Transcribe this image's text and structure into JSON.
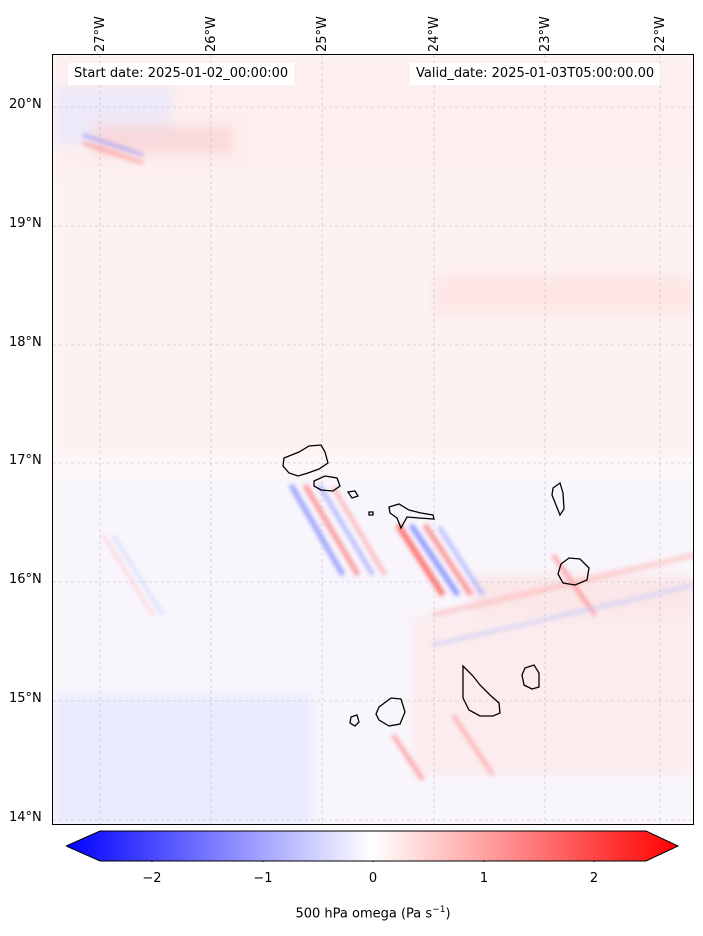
{
  "map": {
    "start_annotation": "Start date: 2025-01-02_00:00:00",
    "valid_annotation": "Valid_date: 2025-01-03T05:00:00.00",
    "lon_labels": [
      "27°W",
      "26°W",
      "25°W",
      "24°W",
      "23°W",
      "22°W"
    ],
    "lat_labels": [
      "20°N",
      "19°N",
      "18°N",
      "17°N",
      "16°N",
      "15°N",
      "14°N"
    ],
    "lon_range": [
      -27.4,
      -21.7
    ],
    "lat_range": [
      13.95,
      20.4
    ],
    "gridlines": true,
    "field": "500 hPa omega",
    "land_outline_color": "#000000"
  },
  "colorbar": {
    "label": "500 hPa omega (Pa s",
    "label_sup": "−1",
    "label_close": ")",
    "ticks": [
      "−2",
      "−1",
      "0",
      "1",
      "2"
    ],
    "range": [
      -2.5,
      2.5
    ],
    "colormap": "bwr",
    "low_color": "#0000ff",
    "mid_color": "#ffffff",
    "high_color": "#ff0000"
  }
}
